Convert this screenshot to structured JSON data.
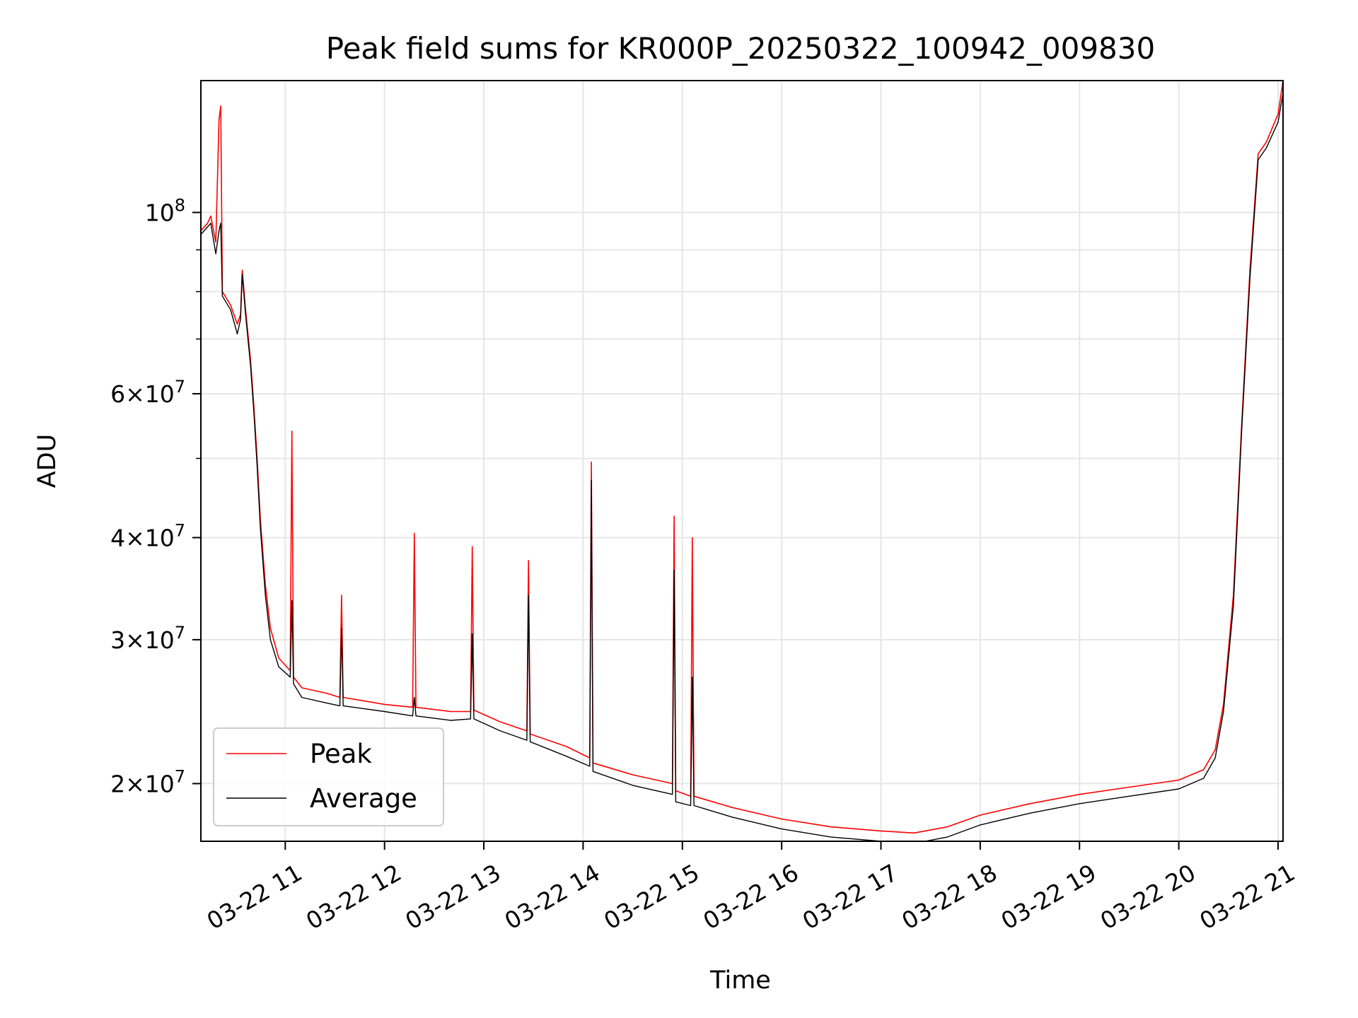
{
  "chart_data": {
    "type": "line",
    "title": "Peak field sums for KR000P_20250322_100942_009830",
    "xlabel": "Time",
    "ylabel": "ADU",
    "y_scale": "log",
    "ylim": [
      17000000,
      145000000
    ],
    "xlim": [
      "2025-03-22 10:09",
      "2025-03-22 21:03"
    ],
    "x_ticks": [
      {
        "x": "2025-03-22 11:00",
        "label": "03-22 11"
      },
      {
        "x": "2025-03-22 12:00",
        "label": "03-22 12"
      },
      {
        "x": "2025-03-22 13:00",
        "label": "03-22 13"
      },
      {
        "x": "2025-03-22 14:00",
        "label": "03-22 14"
      },
      {
        "x": "2025-03-22 15:00",
        "label": "03-22 15"
      },
      {
        "x": "2025-03-22 16:00",
        "label": "03-22 16"
      },
      {
        "x": "2025-03-22 17:00",
        "label": "03-22 17"
      },
      {
        "x": "2025-03-22 18:00",
        "label": "03-22 18"
      },
      {
        "x": "2025-03-22 19:00",
        "label": "03-22 19"
      },
      {
        "x": "2025-03-22 20:00",
        "label": "03-22 20"
      },
      {
        "x": "2025-03-22 21:00",
        "label": "03-22 21"
      }
    ],
    "y_ticks": [
      {
        "y": 20000000,
        "base": "2",
        "exp": "7"
      },
      {
        "y": 30000000,
        "base": "3",
        "exp": "7"
      },
      {
        "y": 40000000,
        "base": "4",
        "exp": "7"
      },
      {
        "y": 60000000,
        "base": "6",
        "exp": "7"
      },
      {
        "y": 100000000,
        "base": "",
        "exp": "8"
      }
    ],
    "y_minor_ticks": [
      50000000,
      70000000,
      80000000,
      90000000
    ],
    "grid": true,
    "legend_position": "bottom-left",
    "series": [
      {
        "name": "Peak",
        "color": "#ff0000",
        "points": [
          [
            "2025-03-22 10:09",
            95000000
          ],
          [
            "2025-03-22 10:13",
            97000000
          ],
          [
            "2025-03-22 10:15",
            99000000
          ],
          [
            "2025-03-22 10:18",
            92000000
          ],
          [
            "2025-03-22 10:20",
            130000000
          ],
          [
            "2025-03-22 10:21",
            135000000
          ],
          [
            "2025-03-22 10:22",
            80000000
          ],
          [
            "2025-03-22 10:27",
            77000000
          ],
          [
            "2025-03-22 10:31",
            73000000
          ],
          [
            "2025-03-22 10:33",
            75000000
          ],
          [
            "2025-03-22 10:34",
            85000000
          ],
          [
            "2025-03-22 10:36",
            76000000
          ],
          [
            "2025-03-22 10:39",
            66000000
          ],
          [
            "2025-03-22 10:41",
            58000000
          ],
          [
            "2025-03-22 10:43",
            50000000
          ],
          [
            "2025-03-22 10:45",
            42000000
          ],
          [
            "2025-03-22 10:48",
            35000000
          ],
          [
            "2025-03-22 10:51",
            31000000
          ],
          [
            "2025-03-22 10:56",
            28500000
          ],
          [
            "2025-03-22 11:03",
            27500000
          ],
          [
            "2025-03-22 11:04",
            54000000
          ],
          [
            "2025-03-22 11:05",
            27000000
          ],
          [
            "2025-03-22 11:10",
            26200000
          ],
          [
            "2025-03-22 11:25",
            25800000
          ],
          [
            "2025-03-22 11:33",
            25500000
          ],
          [
            "2025-03-22 11:34",
            34000000
          ],
          [
            "2025-03-22 11:35",
            25500000
          ],
          [
            "2025-03-22 12:00",
            25000000
          ],
          [
            "2025-03-22 12:17",
            24800000
          ],
          [
            "2025-03-22 12:18",
            40500000
          ],
          [
            "2025-03-22 12:19",
            24800000
          ],
          [
            "2025-03-22 12:40",
            24500000
          ],
          [
            "2025-03-22 12:52",
            24500000
          ],
          [
            "2025-03-22 12:53",
            39000000
          ],
          [
            "2025-03-22 12:54",
            24600000
          ],
          [
            "2025-03-22 13:10",
            23800000
          ],
          [
            "2025-03-22 13:26",
            23200000
          ],
          [
            "2025-03-22 13:27",
            37500000
          ],
          [
            "2025-03-22 13:28",
            23000000
          ],
          [
            "2025-03-22 13:50",
            22200000
          ],
          [
            "2025-03-22 14:04",
            21500000
          ],
          [
            "2025-03-22 14:05",
            49500000
          ],
          [
            "2025-03-22 14:06",
            21200000
          ],
          [
            "2025-03-22 14:30",
            20500000
          ],
          [
            "2025-03-22 14:54",
            20000000
          ],
          [
            "2025-03-22 14:55",
            42500000
          ],
          [
            "2025-03-22 14:56",
            19600000
          ],
          [
            "2025-03-22 15:05",
            19300000
          ],
          [
            "2025-03-22 15:06",
            40000000
          ],
          [
            "2025-03-22 15:07",
            19300000
          ],
          [
            "2025-03-22 15:30",
            18700000
          ],
          [
            "2025-03-22 16:00",
            18100000
          ],
          [
            "2025-03-22 16:30",
            17700000
          ],
          [
            "2025-03-22 17:00",
            17500000
          ],
          [
            "2025-03-22 17:20",
            17400000
          ],
          [
            "2025-03-22 17:40",
            17700000
          ],
          [
            "2025-03-22 18:00",
            18300000
          ],
          [
            "2025-03-22 18:30",
            18900000
          ],
          [
            "2025-03-22 19:00",
            19400000
          ],
          [
            "2025-03-22 19:30",
            19800000
          ],
          [
            "2025-03-22 20:00",
            20200000
          ],
          [
            "2025-03-22 20:15",
            20800000
          ],
          [
            "2025-03-22 20:22",
            22000000
          ],
          [
            "2025-03-22 20:27",
            25000000
          ],
          [
            "2025-03-22 20:33",
            34000000
          ],
          [
            "2025-03-22 20:38",
            55000000
          ],
          [
            "2025-03-22 20:43",
            85000000
          ],
          [
            "2025-03-22 20:48",
            118000000
          ],
          [
            "2025-03-22 20:53",
            122000000
          ],
          [
            "2025-03-22 21:00",
            132000000
          ],
          [
            "2025-03-22 21:03",
            145000000
          ]
        ]
      },
      {
        "name": "Average",
        "color": "#000000",
        "points": [
          [
            "2025-03-22 10:09",
            94000000
          ],
          [
            "2025-03-22 10:13",
            96000000
          ],
          [
            "2025-03-22 10:15",
            97000000
          ],
          [
            "2025-03-22 10:18",
            89000000
          ],
          [
            "2025-03-22 10:20",
            95000000
          ],
          [
            "2025-03-22 10:21",
            97000000
          ],
          [
            "2025-03-22 10:22",
            79000000
          ],
          [
            "2025-03-22 10:27",
            76000000
          ],
          [
            "2025-03-22 10:31",
            71000000
          ],
          [
            "2025-03-22 10:33",
            74000000
          ],
          [
            "2025-03-22 10:34",
            84000000
          ],
          [
            "2025-03-22 10:36",
            75000000
          ],
          [
            "2025-03-22 10:39",
            65000000
          ],
          [
            "2025-03-22 10:41",
            57000000
          ],
          [
            "2025-03-22 10:43",
            49000000
          ],
          [
            "2025-03-22 10:45",
            41000000
          ],
          [
            "2025-03-22 10:48",
            34000000
          ],
          [
            "2025-03-22 10:51",
            30000000
          ],
          [
            "2025-03-22 10:56",
            27800000
          ],
          [
            "2025-03-22 11:03",
            27000000
          ],
          [
            "2025-03-22 11:04",
            33500000
          ],
          [
            "2025-03-22 11:05",
            26500000
          ],
          [
            "2025-03-22 11:10",
            25500000
          ],
          [
            "2025-03-22 11:25",
            25100000
          ],
          [
            "2025-03-22 11:33",
            24900000
          ],
          [
            "2025-03-22 11:34",
            31000000
          ],
          [
            "2025-03-22 11:35",
            24900000
          ],
          [
            "2025-03-22 12:00",
            24500000
          ],
          [
            "2025-03-22 12:17",
            24200000
          ],
          [
            "2025-03-22 12:18",
            25500000
          ],
          [
            "2025-03-22 12:19",
            24200000
          ],
          [
            "2025-03-22 12:40",
            23900000
          ],
          [
            "2025-03-22 12:52",
            24000000
          ],
          [
            "2025-03-22 12:53",
            30500000
          ],
          [
            "2025-03-22 12:54",
            24000000
          ],
          [
            "2025-03-22 13:10",
            23200000
          ],
          [
            "2025-03-22 13:26",
            22600000
          ],
          [
            "2025-03-22 13:27",
            34000000
          ],
          [
            "2025-03-22 13:28",
            22500000
          ],
          [
            "2025-03-22 13:50",
            21600000
          ],
          [
            "2025-03-22 14:04",
            21000000
          ],
          [
            "2025-03-22 14:05",
            47000000
          ],
          [
            "2025-03-22 14:06",
            20700000
          ],
          [
            "2025-03-22 14:30",
            19900000
          ],
          [
            "2025-03-22 14:54",
            19400000
          ],
          [
            "2025-03-22 14:55",
            36500000
          ],
          [
            "2025-03-22 14:56",
            19000000
          ],
          [
            "2025-03-22 15:05",
            18800000
          ],
          [
            "2025-03-22 15:06",
            27000000
          ],
          [
            "2025-03-22 15:07",
            18800000
          ],
          [
            "2025-03-22 15:30",
            18200000
          ],
          [
            "2025-03-22 16:00",
            17600000
          ],
          [
            "2025-03-22 16:30",
            17200000
          ],
          [
            "2025-03-22 17:00",
            17000000
          ],
          [
            "2025-03-22 17:20",
            16900000
          ],
          [
            "2025-03-22 17:40",
            17200000
          ],
          [
            "2025-03-22 18:00",
            17800000
          ],
          [
            "2025-03-22 18:30",
            18400000
          ],
          [
            "2025-03-22 19:00",
            18900000
          ],
          [
            "2025-03-22 19:30",
            19300000
          ],
          [
            "2025-03-22 20:00",
            19700000
          ],
          [
            "2025-03-22 20:15",
            20300000
          ],
          [
            "2025-03-22 20:22",
            21500000
          ],
          [
            "2025-03-22 20:27",
            24500000
          ],
          [
            "2025-03-22 20:33",
            33000000
          ],
          [
            "2025-03-22 20:38",
            54000000
          ],
          [
            "2025-03-22 20:43",
            83000000
          ],
          [
            "2025-03-22 20:48",
            116000000
          ],
          [
            "2025-03-22 20:53",
            120000000
          ],
          [
            "2025-03-22 21:00",
            129000000
          ],
          [
            "2025-03-22 21:03",
            140000000
          ]
        ]
      }
    ]
  }
}
